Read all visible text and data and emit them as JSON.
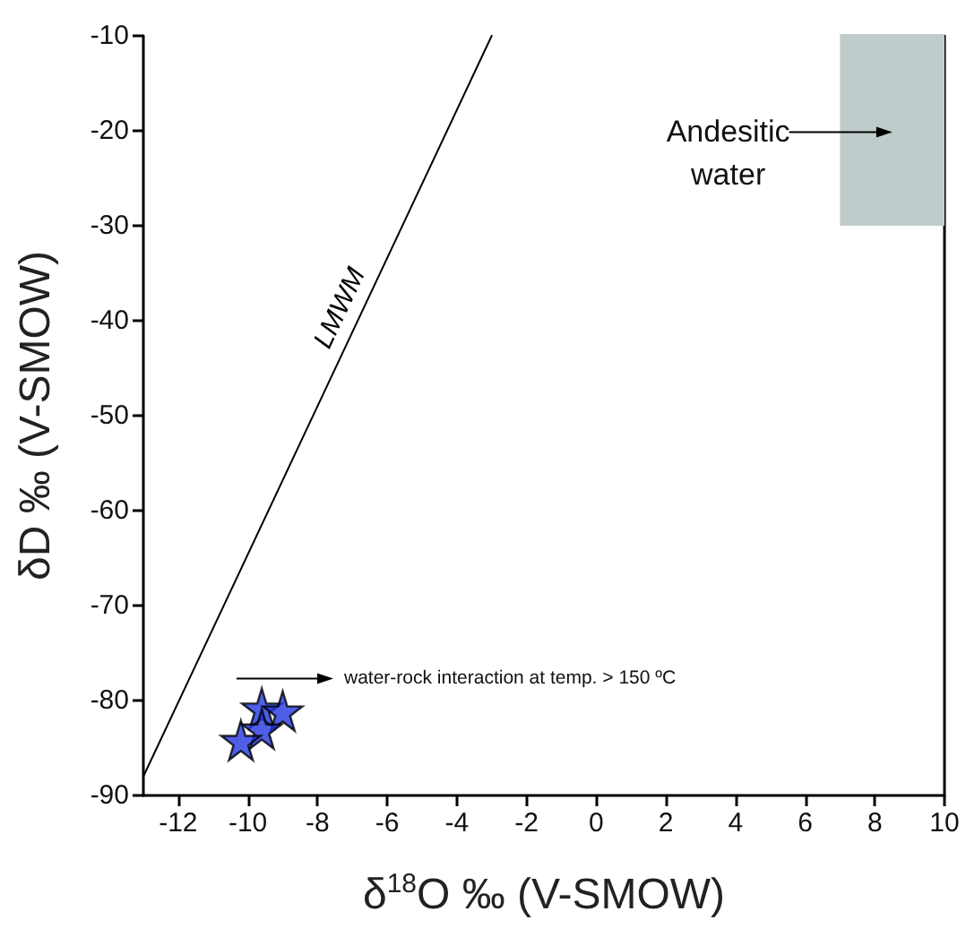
{
  "chart_data": {
    "type": "scatter",
    "xlabel": "δ$^{18}$O ‰ (V-SMOW)",
    "ylabel": "δD ‰ (V-SMOW)",
    "xlim": [
      -13,
      10
    ],
    "xticks": [
      -12,
      -10,
      -8,
      -6,
      -4,
      -2,
      0,
      2,
      4,
      6,
      8,
      10
    ],
    "ylim": [
      -90,
      -10
    ],
    "yticks": [
      -90,
      -80,
      -70,
      -60,
      -50,
      -40,
      -30,
      -20,
      -10
    ],
    "grid": false,
    "legend": false,
    "marker": "star",
    "series": [
      {
        "color": "#2236e0",
        "x": [
          -9.6,
          -9.0,
          -9.6,
          -10.2
        ],
        "values": [
          -80.8,
          -81.1,
          -83.0,
          -84.2
        ]
      },
      {
        "name": "LMWM",
        "type": "line",
        "color": "#000000",
        "marker": "none",
        "x": [
          -13,
          -3
        ],
        "values": [
          -88,
          -10
        ]
      },
      {
        "type": "line",
        "color": "#c0cccb",
        "marker": "none",
        "x": [
          7,
          10
        ],
        "values": [
          -10,
          -10
        ],
        "lower": [
          -30,
          -30
        ],
        "upper": [
          -10,
          -10
        ]
      }
    ],
    "annotations": [
      "water-rock interaction at temp. > 150 ºC",
      "Andesitic water"
    ]
  }
}
